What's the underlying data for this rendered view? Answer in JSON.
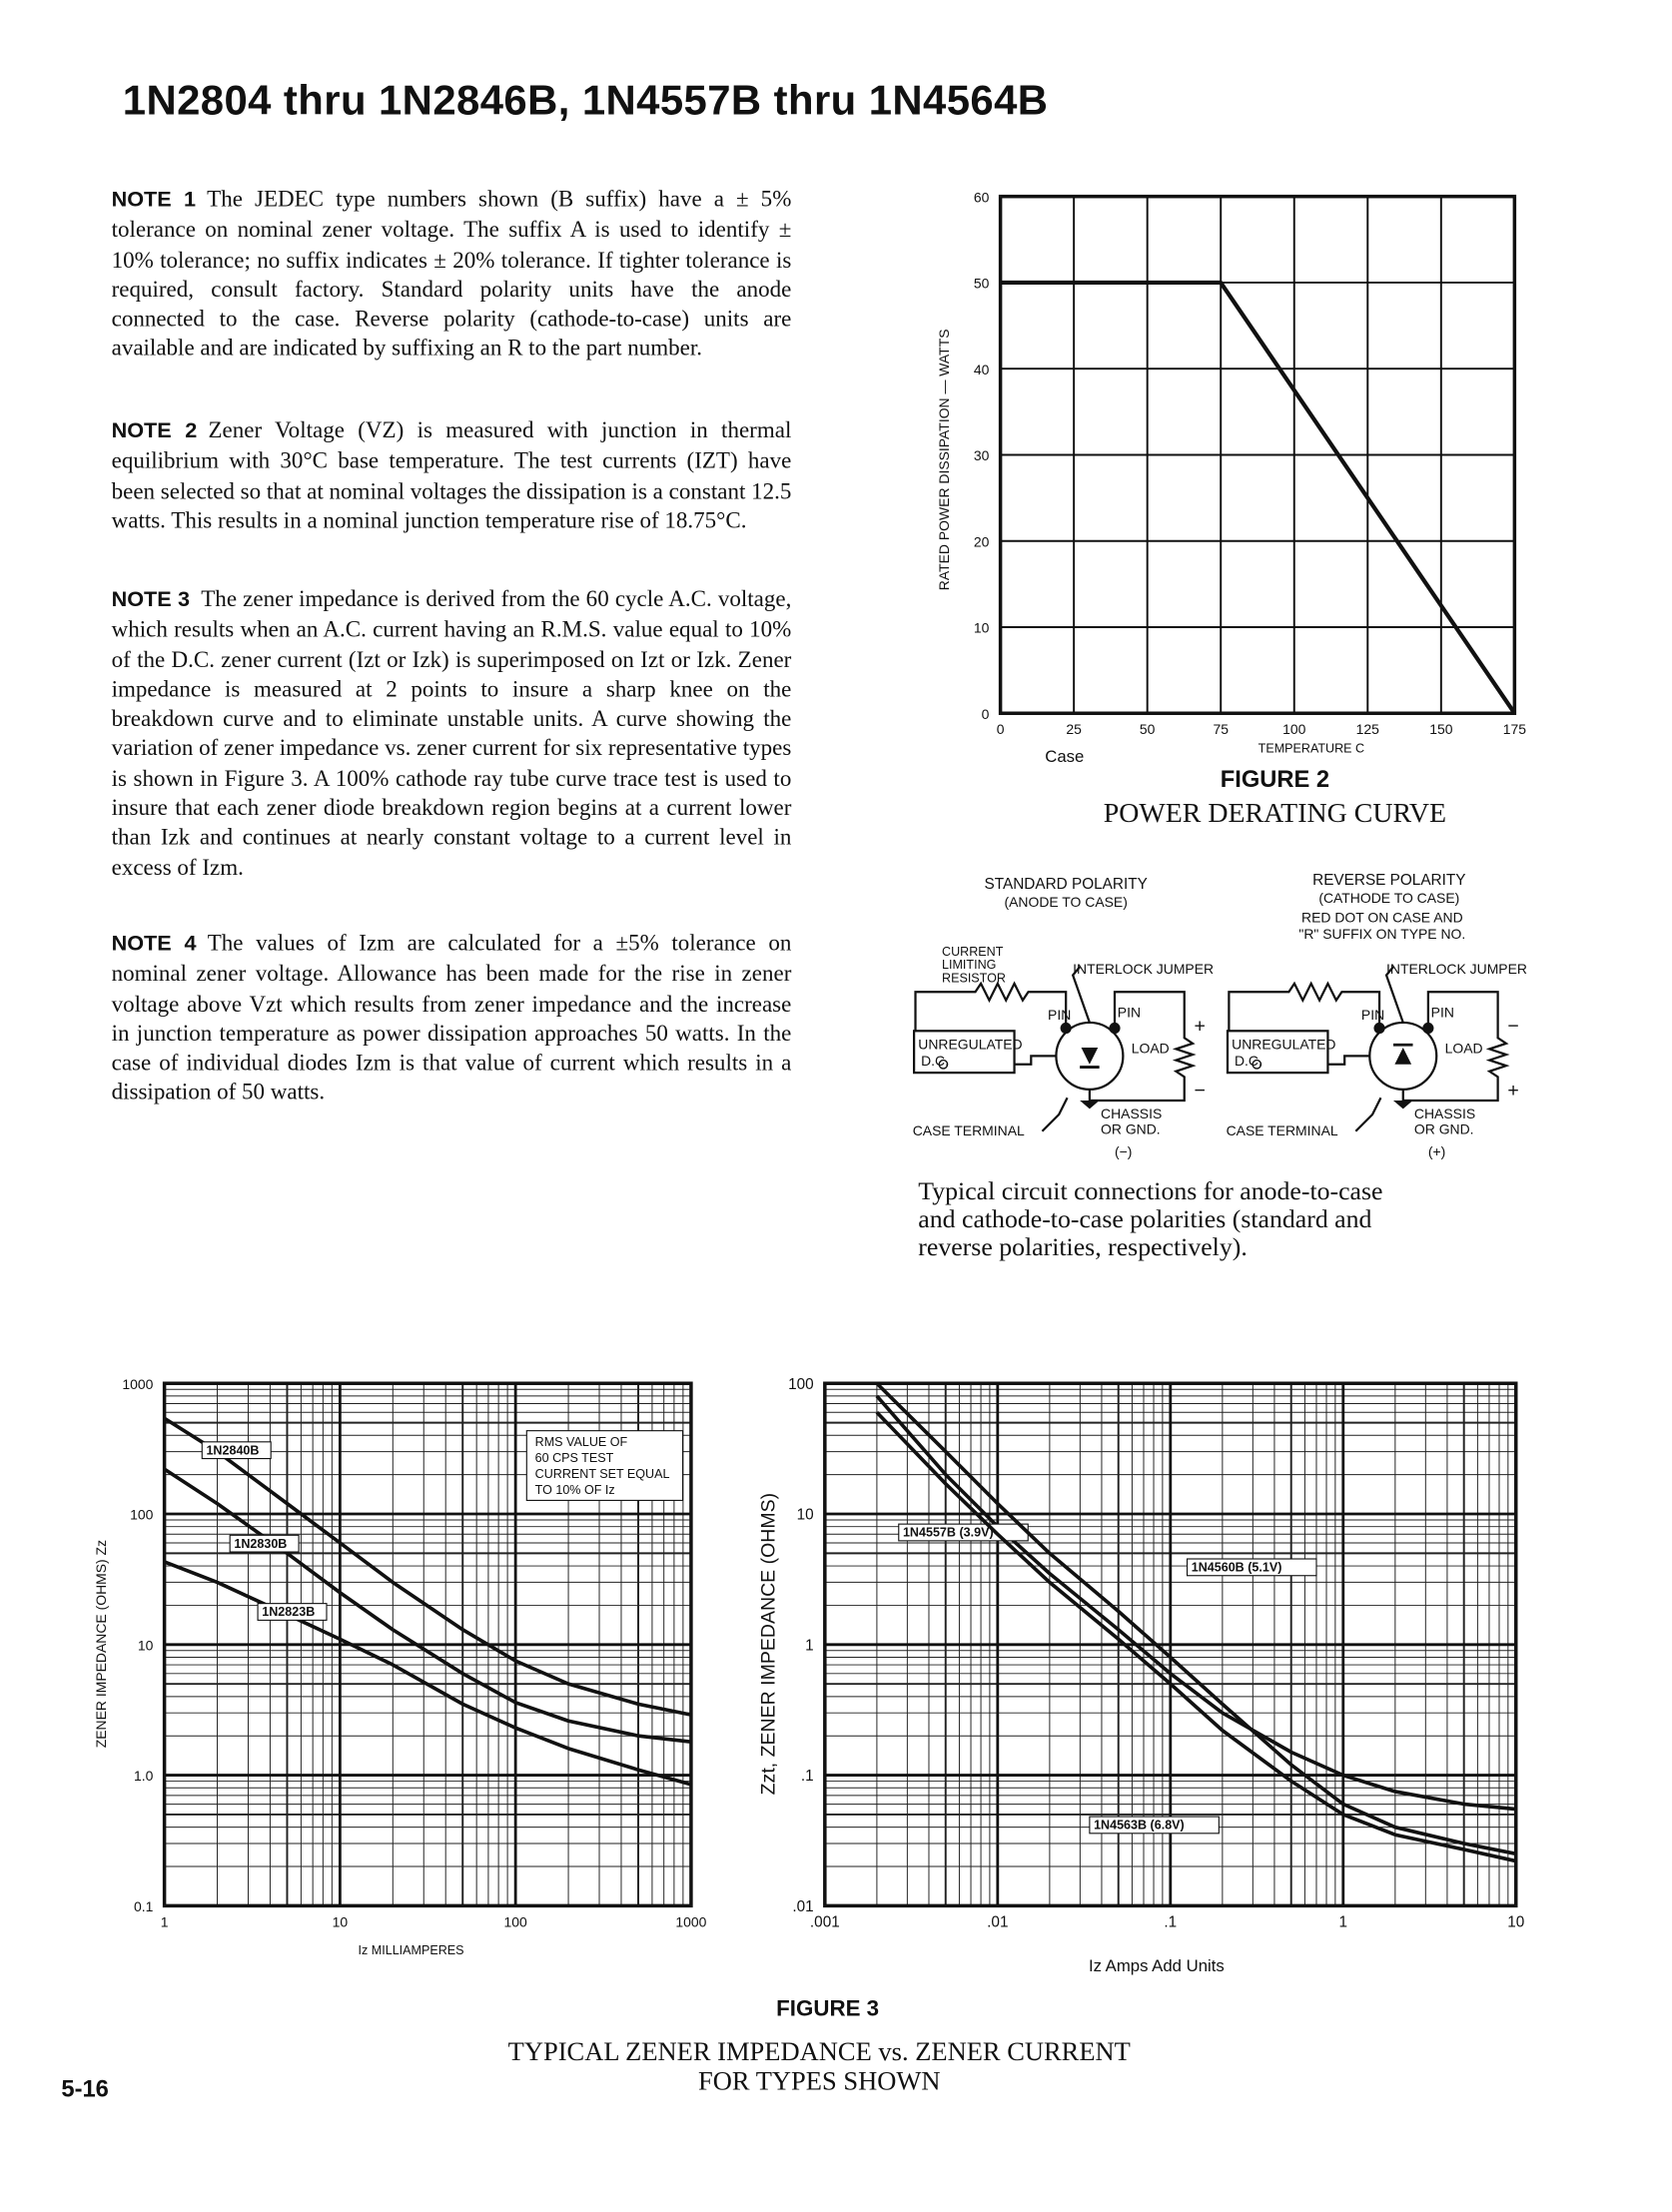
{
  "header": {
    "title": "1N2804 thru 1N2846B, 1N4557B thru 1N4564B",
    "page_number": "5-16"
  },
  "notes": [
    {
      "label": "NOTE 1",
      "text": "The JEDEC type numbers shown (B suffix) have a ± 5% tolerance on nominal zener voltage. The suffix A is used to identify ± 10% tolerance; no suffix indicates ± 20% tolerance. If tighter tolerance is required, consult factory. Standard polarity units have the anode connected to the case. Reverse polarity (cathode-to-case) units are available and are indicated by suffixing an R to the part number."
    },
    {
      "label": "NOTE 2",
      "text": "Zener Voltage (VZ) is measured with junction in thermal equilibrium with 30°C base temperature. The test currents (IZT) have been selected so that at nominal voltages the dissipation is a constant 12.5 watts. This results in a nominal junction temperature rise of 18.75°C."
    },
    {
      "label": "NOTE 3",
      "text": "The zener impedance is derived from the 60 cycle A.C. voltage, which results when an A.C. current having an R.M.S. value equal to 10% of the D.C. zener current (Izt or Izk) is superimposed on Izt or Izk. Zener impedance is measured at 2 points to insure a sharp knee on the breakdown curve and to eliminate unstable units. A curve showing the variation of zener impedance vs. zener current for six representative types is shown in Figure 3. A 100% cathode ray tube curve trace test is used to insure that each zener diode breakdown region begins at a current lower than Izk and continues at nearly constant voltage to a current level in excess of Izm."
    },
    {
      "label": "NOTE 4",
      "text": "The values of Izm are calculated for a ±5% tolerance on nominal zener voltage. Allowance has been made for the rise in zener voltage above Vzt which results from zener impedance and the increase in junction temperature as power dissipation approaches 50 watts. In the case of individual diodes Izm is that value of current which results in a dissipation of 50 watts."
    }
  ],
  "chart_data": [
    {
      "type": "line",
      "figure": "FIGURE 2",
      "title": "POWER DERATING CURVE",
      "x_label": "TEMPERATURE C",
      "annotation": "Case",
      "y_label": "RATED POWER DISSIPATION — WATTS",
      "x": [
        0,
        75,
        175
      ],
      "series": [
        {
          "color": "#111111",
          "values": [
            50,
            50,
            0
          ]
        }
      ],
      "xlim": [
        0,
        175
      ],
      "xticks": [
        0,
        25,
        50,
        75,
        100,
        125,
        150,
        175
      ],
      "ylim": [
        0,
        60
      ],
      "yticks": [
        0,
        10,
        20,
        30,
        40,
        50,
        60
      ],
      "grid": true
    },
    {
      "type": "line",
      "x_label": "Iz MILLIAMPERES",
      "y_label": "ZENER IMPEDANCE (OHMS) Zz",
      "annotation": [
        "RMS VALUE OF",
        "60 CPS TEST",
        "CURRENT SET EQUAL",
        "TO 10% OF Iz"
      ],
      "log_x": true,
      "log_y": true,
      "grid": true,
      "minor_grid": true,
      "x": [
        1,
        2,
        5,
        10,
        20,
        50,
        100,
        200,
        500,
        1000
      ],
      "series": [
        {
          "name": "1N2840B",
          "color": "#111111",
          "values": [
            540,
            300,
            120,
            60,
            30,
            13,
            7.5,
            5,
            3.5,
            2.9
          ]
        },
        {
          "name": "1N2830B",
          "color": "#111111",
          "values": [
            220,
            120,
            50,
            25,
            13,
            6,
            3.6,
            2.6,
            2,
            1.8
          ]
        },
        {
          "name": "1N2823B",
          "color": "#111111",
          "values": [
            43,
            30,
            17,
            11,
            7,
            3.5,
            2.3,
            1.6,
            1.1,
            0.85
          ]
        }
      ],
      "xlim": [
        1,
        1000
      ],
      "xticks": [
        1,
        10,
        100,
        1000
      ],
      "ylim": [
        0.1,
        1000
      ],
      "yticks": [
        0.1,
        {
          "value": 1,
          "label": "1.0"
        },
        10,
        100,
        1000
      ]
    },
    {
      "type": "line",
      "x_label": "Iz Amps Add Units",
      "y_label": "Zzt, ZENER IMPEDANCE (OHMS)",
      "log_x": true,
      "log_y": true,
      "grid": true,
      "minor_grid": true,
      "x": [
        0.002,
        0.005,
        0.01,
        0.02,
        0.05,
        0.1,
        0.2,
        0.5,
        1,
        2,
        5,
        10
      ],
      "series": [
        {
          "name": "1N4557B (3.9V)",
          "color": "#111111",
          "values": [
            80,
            20,
            8,
            3.5,
            1.3,
            0.6,
            0.3,
            0.15,
            0.1,
            0.075,
            0.06,
            0.055
          ]
        },
        {
          "name": "1N4560B (5.1V)",
          "color": "#111111",
          "values": [
            100,
            30,
            12,
            5,
            1.8,
            0.8,
            0.35,
            0.12,
            0.06,
            0.04,
            0.03,
            0.025
          ]
        },
        {
          "name": "1N4563B (6.8V)",
          "color": "#111111",
          "values": [
            60,
            17,
            7,
            3,
            1.1,
            0.5,
            0.22,
            0.09,
            0.05,
            0.035,
            0.027,
            0.022
          ]
        }
      ],
      "xlim": [
        0.001,
        10
      ],
      "xticks": [
        {
          "value": 0.001,
          "label": ".001"
        },
        {
          "value": 0.01,
          "label": ".01"
        },
        {
          "value": 0.1,
          "label": ".1"
        },
        1,
        10
      ],
      "ylim": [
        0.01,
        100
      ],
      "yticks": [
        {
          "value": 0.01,
          "label": ".01"
        },
        {
          "value": 0.1,
          "label": ".1"
        },
        1,
        10,
        100
      ]
    }
  ],
  "figure3": {
    "label": "FIGURE 3",
    "caption": [
      "TYPICAL ZENER IMPEDANCE vs. ZENER CURRENT",
      "FOR TYPES SHOWN"
    ]
  },
  "circuit": {
    "standard": {
      "title": "STANDARD POLARITY",
      "subtitle": "(ANODE TO CASE)",
      "resistor": [
        "CURRENT",
        "LIMITING",
        "RESISTOR"
      ],
      "jumper": "INTERLOCK JUMPER",
      "pins": [
        "PIN",
        "PIN"
      ],
      "source": [
        "UNREGULATED",
        "D.C."
      ],
      "load": "LOAD",
      "case_terminal": "CASE TERMINAL",
      "chassis": [
        "CHASSIS",
        "OR GND."
      ],
      "polarity": "(−)",
      "signs": [
        "+",
        "−"
      ]
    },
    "reverse": {
      "title": "REVERSE POLARITY",
      "subtitle": "(CATHODE TO CASE)",
      "note": [
        "RED DOT ON CASE AND",
        "\"R\" SUFFIX ON TYPE NO."
      ],
      "jumper": "INTERLOCK JUMPER",
      "pins": [
        "PIN",
        "PIN"
      ],
      "source": [
        "UNREGULATED",
        "D.C."
      ],
      "load": "LOAD",
      "case_terminal": "CASE TERMINAL",
      "chassis": [
        "CHASSIS",
        "OR GND."
      ],
      "polarity": "(+)",
      "signs": [
        "−",
        "+"
      ]
    },
    "caption": "Typical circuit connections for anode-to-case and cathode-to-case polarities (standard and reverse polarities, respectively)."
  }
}
